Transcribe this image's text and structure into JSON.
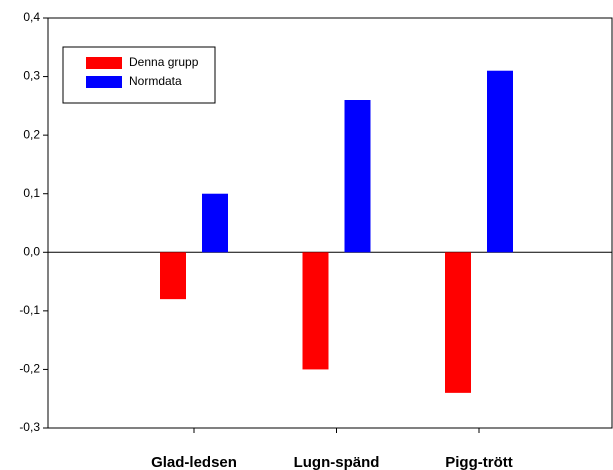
{
  "chart_data": {
    "type": "bar",
    "categories": [
      "Glad-ledsen",
      "Lugn-spänd",
      "Pigg-trött"
    ],
    "series": [
      {
        "name": "Denna grupp",
        "color": "#ff0000",
        "values": [
          -0.08,
          -0.2,
          -0.24
        ]
      },
      {
        "name": "Normdata",
        "color": "#0000ff",
        "values": [
          0.1,
          0.26,
          0.31
        ]
      }
    ],
    "ylim": [
      -0.3,
      0.4
    ],
    "yticks": [
      {
        "value": -0.3,
        "label": "-0,3"
      },
      {
        "value": -0.2,
        "label": "-0,2"
      },
      {
        "value": -0.1,
        "label": "-0,1"
      },
      {
        "value": 0,
        "label": "0,0"
      },
      {
        "value": 0.1,
        "label": "0,1"
      },
      {
        "value": 0.2,
        "label": "0,2"
      },
      {
        "value": 0.3,
        "label": "0,3"
      },
      {
        "value": 0.4,
        "label": "0,4"
      }
    ],
    "legend": "top-left"
  }
}
